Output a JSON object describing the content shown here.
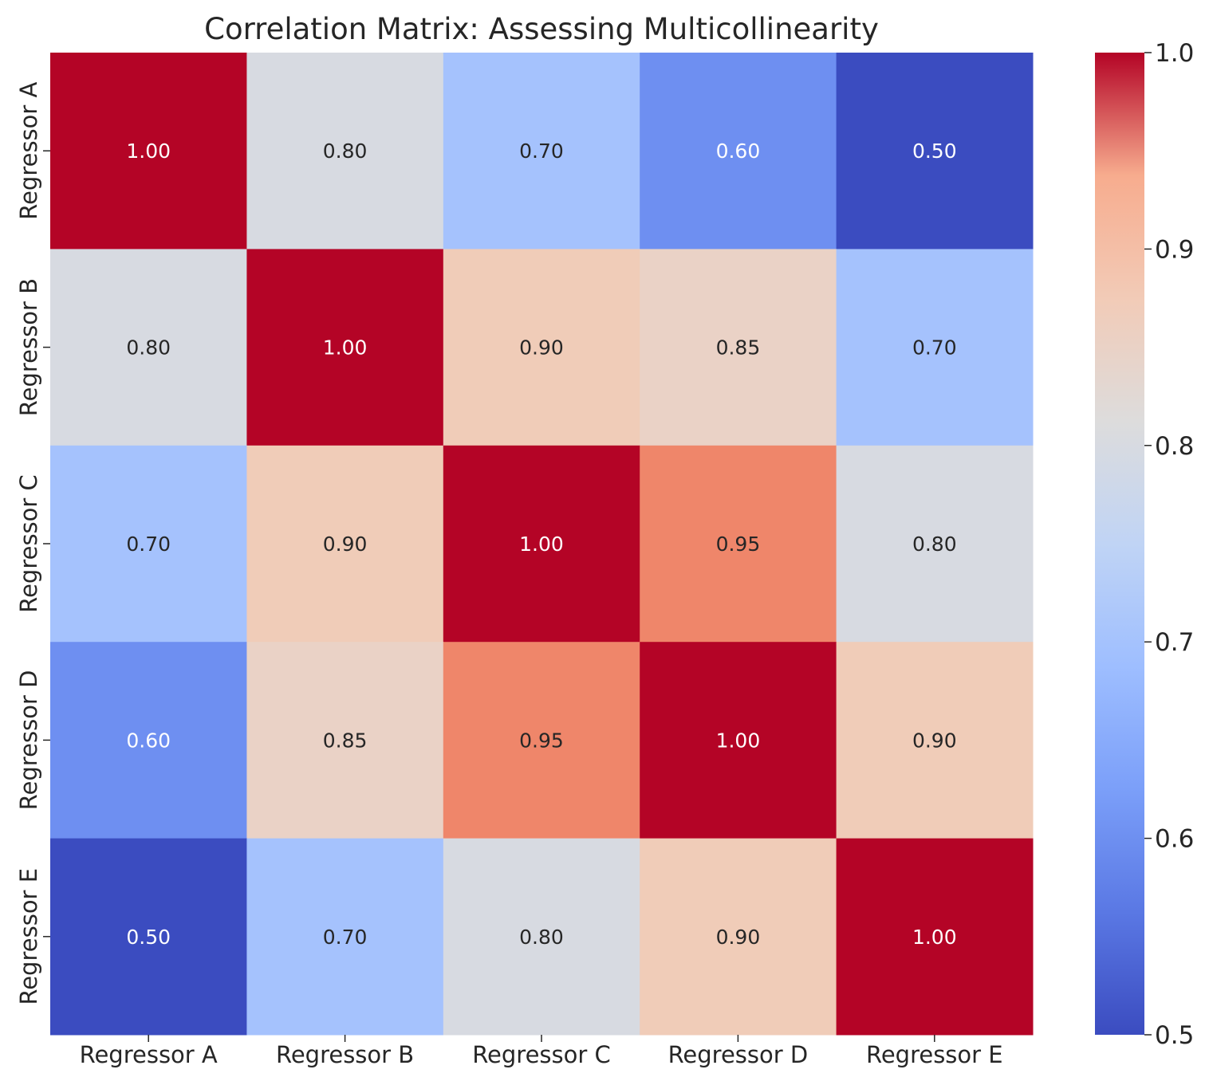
{
  "chart_data": {
    "type": "heatmap",
    "title": "Correlation Matrix: Assessing Multicollinearity",
    "xlabel": "",
    "ylabel": "",
    "x_categories": [
      "Regressor A",
      "Regressor B",
      "Regressor C",
      "Regressor D",
      "Regressor E"
    ],
    "y_categories": [
      "Regressor A",
      "Regressor B",
      "Regressor C",
      "Regressor D",
      "Regressor E"
    ],
    "values": [
      [
        1.0,
        0.8,
        0.7,
        0.6,
        0.5
      ],
      [
        0.8,
        1.0,
        0.9,
        0.85,
        0.7
      ],
      [
        0.7,
        0.9,
        1.0,
        0.95,
        0.8
      ],
      [
        0.6,
        0.85,
        0.95,
        1.0,
        0.9
      ],
      [
        0.5,
        0.7,
        0.8,
        0.9,
        1.0
      ]
    ],
    "value_labels": [
      [
        "1.00",
        "0.80",
        "0.70",
        "0.60",
        "0.50"
      ],
      [
        "0.80",
        "1.00",
        "0.90",
        "0.85",
        "0.70"
      ],
      [
        "0.70",
        "0.90",
        "1.00",
        "0.95",
        "0.80"
      ],
      [
        "0.60",
        "0.85",
        "0.95",
        "1.00",
        "0.90"
      ],
      [
        "0.50",
        "0.70",
        "0.80",
        "0.90",
        "1.00"
      ]
    ],
    "colormap": "coolwarm",
    "vmin": 0.5,
    "vmax": 1.0,
    "colorbar": {
      "placement": "right",
      "ticks": [
        0.5,
        0.6,
        0.7,
        0.8,
        0.9,
        1.0
      ],
      "tick_labels": [
        "0.5",
        "0.6",
        "0.7",
        "0.8",
        "0.9",
        "1.0"
      ]
    },
    "grid": false
  }
}
